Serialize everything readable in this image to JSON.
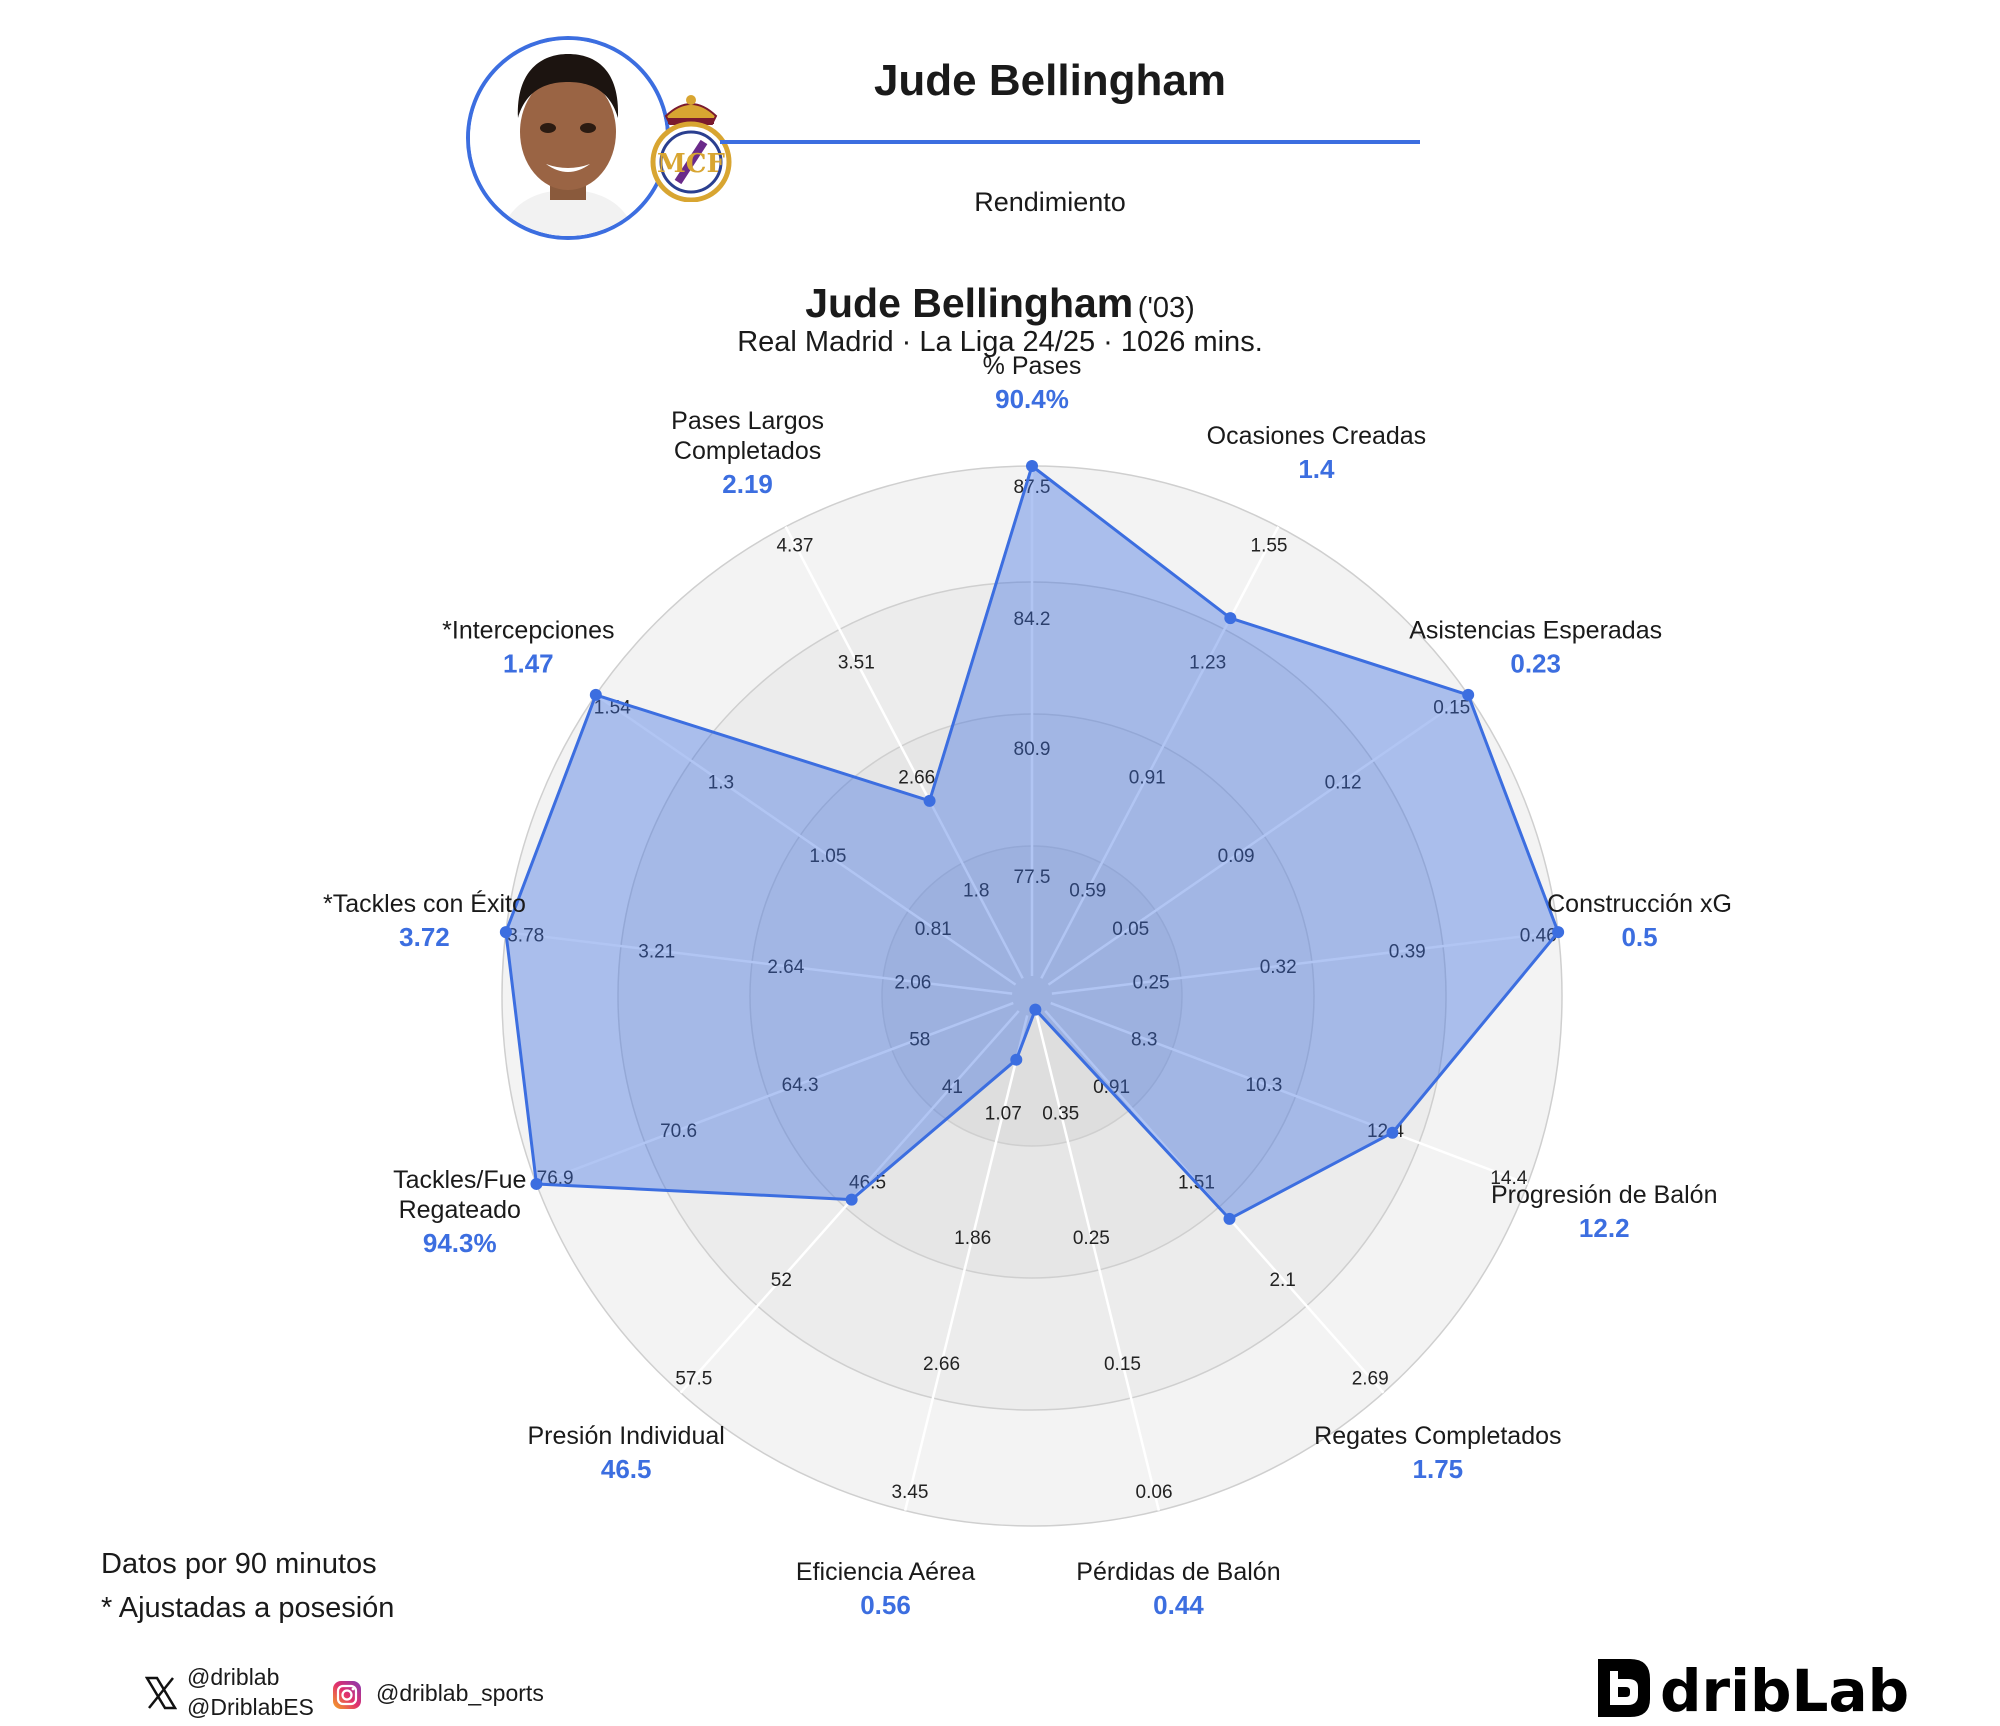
{
  "header": {
    "name": "Jude Bellingham",
    "subtitle": "Rendimiento",
    "accent_color": "#3c6ee0",
    "avatar_icon": "player-photo",
    "crest_icon": "real-madrid-crest"
  },
  "title": {
    "name": "Jude Bellingham",
    "birth_year": "('03)",
    "subtitle": "Real Madrid · La Liga 24/25 · 1026 mins."
  },
  "notes": {
    "line1": "Datos por 90 minutos",
    "line2": "* Ajustadas a posesión"
  },
  "social": {
    "x_handle_1": "@driblab",
    "x_handle_2": "@DriblabES",
    "instagram": "@driblab_sports"
  },
  "brand": {
    "name": "dribLab"
  },
  "chart_data": {
    "type": "radar",
    "title": "",
    "fill_color": "#3c6ee0",
    "grid": true,
    "metrics": [
      {
        "label": "% Pases",
        "value_label": "90.4%",
        "ticks": [
          "77.5",
          "80.9",
          "84.2",
          "87.5"
        ],
        "level": 1.0
      },
      {
        "label": "Ocasiones Creadas",
        "value_label": "1.4",
        "ticks": [
          "0.59",
          "0.91",
          "1.23",
          "1.55"
        ],
        "level": 0.8
      },
      {
        "label": "Asistencias Esperadas",
        "value_label": "0.23",
        "ticks": [
          "0.05",
          "0.09",
          "0.12",
          "0.15"
        ],
        "level": 1.0
      },
      {
        "label": "Construcción xG",
        "value_label": "0.5",
        "ticks": [
          "0.25",
          "0.32",
          "0.39",
          "0.46"
        ],
        "level": 1.0
      },
      {
        "label": "Progresión de Balón",
        "value_label": "12.2",
        "ticks": [
          "8.3",
          "10.3",
          "12.4",
          "14.4"
        ],
        "level": 0.72
      },
      {
        "label": "Regates Completados",
        "value_label": "1.75",
        "ticks": [
          "0.91",
          "1.51",
          "2.1",
          "2.69"
        ],
        "level": 0.55
      },
      {
        "label": "Pérdidas de Balón",
        "value_label": "0.44",
        "ticks": [
          "0.35",
          "0.25",
          "0.15",
          "0.06"
        ],
        "level": 0.0
      },
      {
        "label": "Eficiencia Aérea",
        "value_label": "0.56",
        "ticks": [
          "1.07",
          "1.86",
          "2.66",
          "3.45"
        ],
        "level": 0.1
      },
      {
        "label": "Presión Individual",
        "value_label": "46.5",
        "ticks": [
          "41",
          "46.5",
          "52",
          "57.5"
        ],
        "level": 0.5
      },
      {
        "label": "Tackles/Fue\nRegateado",
        "value_label": "94.3%",
        "ticks": [
          "58",
          "64.3",
          "70.6",
          "76.9"
        ],
        "level": 1.0
      },
      {
        "label": "*Tackles con Éxito",
        "value_label": "3.72",
        "ticks": [
          "2.06",
          "2.64",
          "3.21",
          "3.78"
        ],
        "level": 1.0
      },
      {
        "label": "*Intercepciones",
        "value_label": "1.47",
        "ticks": [
          "0.81",
          "1.05",
          "1.3",
          "1.54"
        ],
        "level": 1.0
      },
      {
        "label": "Pases Largos\nCompletados",
        "value_label": "2.19",
        "ticks": [
          "1.8",
          "2.66",
          "3.51",
          "4.37"
        ],
        "level": 0.4
      }
    ]
  }
}
